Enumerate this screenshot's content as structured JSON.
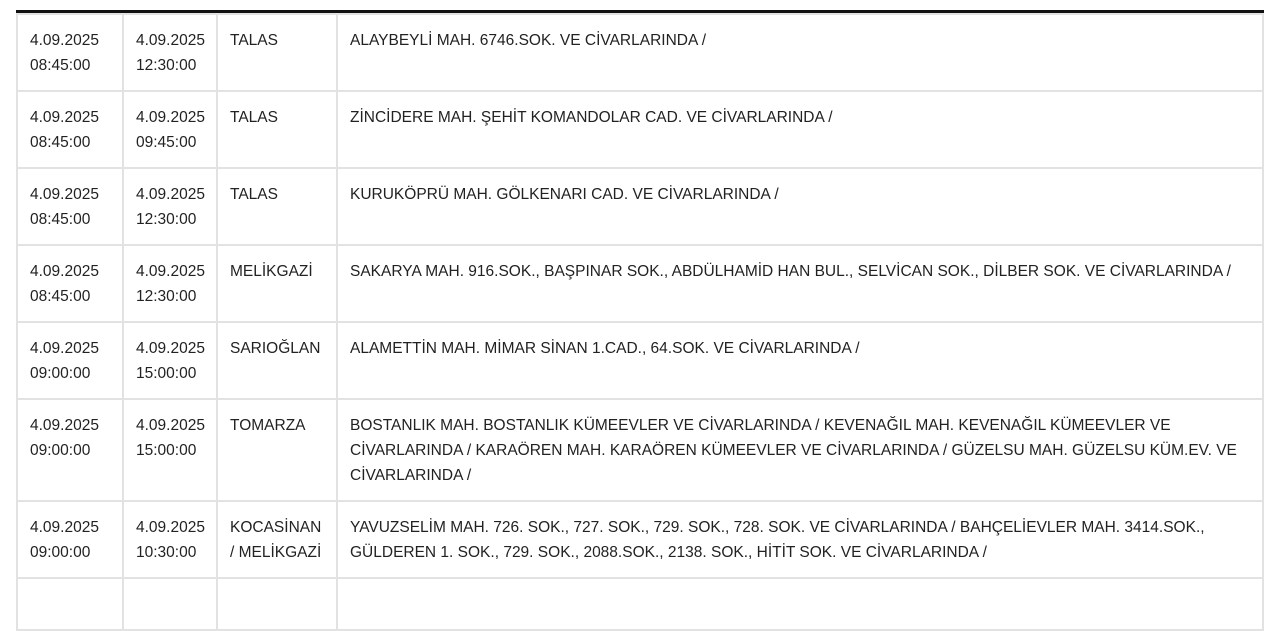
{
  "rows": [
    {
      "start_date": "4.09.2025",
      "start_time": "08:45:00",
      "end_date": "4.09.2025",
      "end_time": "12:30:00",
      "district": "TALAS",
      "area": "ALAYBEYLİ MAH. 6746.SOK. VE CİVARLARINDA /"
    },
    {
      "start_date": "4.09.2025",
      "start_time": "08:45:00",
      "end_date": "4.09.2025",
      "end_time": "09:45:00",
      "district": "TALAS",
      "area": "ZİNCİDERE MAH. ŞEHİT KOMANDOLAR CAD. VE CİVARLARINDA /"
    },
    {
      "start_date": "4.09.2025",
      "start_time": "08:45:00",
      "end_date": "4.09.2025",
      "end_time": "12:30:00",
      "district": "TALAS",
      "area": "KURUKÖPRÜ MAH. GÖLKENARI CAD. VE CİVARLARINDA /"
    },
    {
      "start_date": "4.09.2025",
      "start_time": "08:45:00",
      "end_date": "4.09.2025",
      "end_time": "12:30:00",
      "district": "MELİKGAZİ",
      "area": "SAKARYA MAH. 916.SOK., BAŞPINAR SOK., ABDÜLHAMİD HAN BUL., SELVİCAN SOK., DİLBER SOK. VE CİVARLARINDA /"
    },
    {
      "start_date": "4.09.2025",
      "start_time": "09:00:00",
      "end_date": "4.09.2025",
      "end_time": "15:00:00",
      "district": "SARIOĞLAN",
      "area": "ALAMETTİN MAH. MİMAR SİNAN 1.CAD., 64.SOK. VE CİVARLARINDA /"
    },
    {
      "start_date": "4.09.2025",
      "start_time": "09:00:00",
      "end_date": "4.09.2025",
      "end_time": "15:00:00",
      "district": "TOMARZA",
      "area": "BOSTANLIK MAH. BOSTANLIK KÜMEEVLER VE CİVARLARINDA / KEVENAĞIL MAH. KEVENAĞIL KÜMEEVLER VE CİVARLARINDA / KARAÖREN MAH. KARAÖREN KÜMEEVLER VE CİVARLARINDA / GÜZELSU MAH. GÜZELSU KÜM.EV. VE CİVARLARINDA /"
    },
    {
      "start_date": "4.09.2025",
      "start_time": "09:00:00",
      "end_date": "4.09.2025",
      "end_time": "10:30:00",
      "district": "KOCASİNAN / MELİKGAZİ",
      "area": "YAVUZSELİM MAH. 726. SOK., 727. SOK., 729. SOK., 728. SOK. VE CİVARLARINDA / BAHÇELİEVLER MAH. 3414.SOK., GÜLDEREN 1. SOK., 729. SOK., 2088.SOK., 2138. SOK., HİTİT SOK. VE CİVARLARINDA /"
    }
  ]
}
